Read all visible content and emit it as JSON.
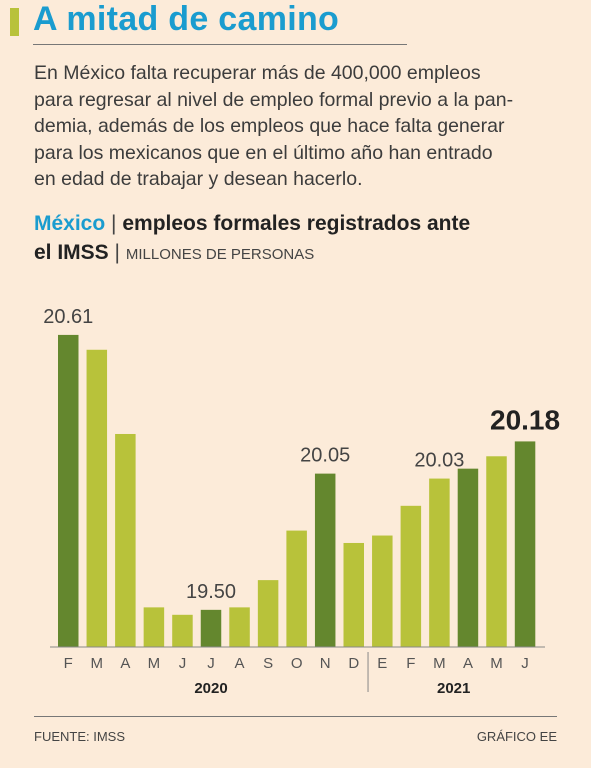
{
  "header": {
    "title": "A mitad de camino",
    "accent_color": "#b8c23a",
    "title_color": "#1a9ccf"
  },
  "intro": {
    "lines": [
      "En México falta recuperar más de 400,000 empleos",
      "para regresar al nivel de empleo formal previo a la pan-",
      "demia, además de los empleos que hace falta generar",
      "para los mexicanos que en el último año han entrado",
      "en edad de trabajar y desean hacerlo."
    ]
  },
  "chart_title": {
    "country": "México",
    "sep1": "|",
    "line1_rest": "empleos formales registrados ante",
    "line2": "el IMSS",
    "sep2": "|",
    "units": "MILLONES DE PERSONAS"
  },
  "chart_data": {
    "type": "bar",
    "categories": [
      "F",
      "M",
      "A",
      "M",
      "J",
      "J",
      "A",
      "S",
      "O",
      "N",
      "D",
      "E",
      "F",
      "M",
      "A",
      "M",
      "J"
    ],
    "values": [
      20.61,
      20.55,
      20.21,
      19.51,
      19.48,
      19.5,
      19.51,
      19.62,
      19.82,
      20.05,
      19.77,
      19.8,
      19.92,
      20.03,
      20.07,
      20.12,
      20.18
    ],
    "highlight_indices": [
      0,
      5,
      9,
      14,
      16
    ],
    "value_labels": [
      {
        "index": 0,
        "text": "20.61",
        "emphasis": false
      },
      {
        "index": 5,
        "text": "19.50",
        "emphasis": false
      },
      {
        "index": 9,
        "text": "20.05",
        "emphasis": false
      },
      {
        "index": 13,
        "text": "20.03",
        "emphasis": false
      },
      {
        "index": 16,
        "text": "20.18",
        "emphasis": true
      }
    ],
    "year_groups": [
      {
        "label": "2020",
        "start": 0,
        "end": 10
      },
      {
        "label": "2021",
        "start": 11,
        "end": 16
      }
    ],
    "ylim": [
      19.35,
      20.65
    ],
    "colors": {
      "bar": "#b8c23a",
      "highlight": "#64872e",
      "axis": "#888888"
    },
    "grid": false
  },
  "footer": {
    "source": "FUENTE: IMSS",
    "credit": "GRÁFICO EE"
  }
}
